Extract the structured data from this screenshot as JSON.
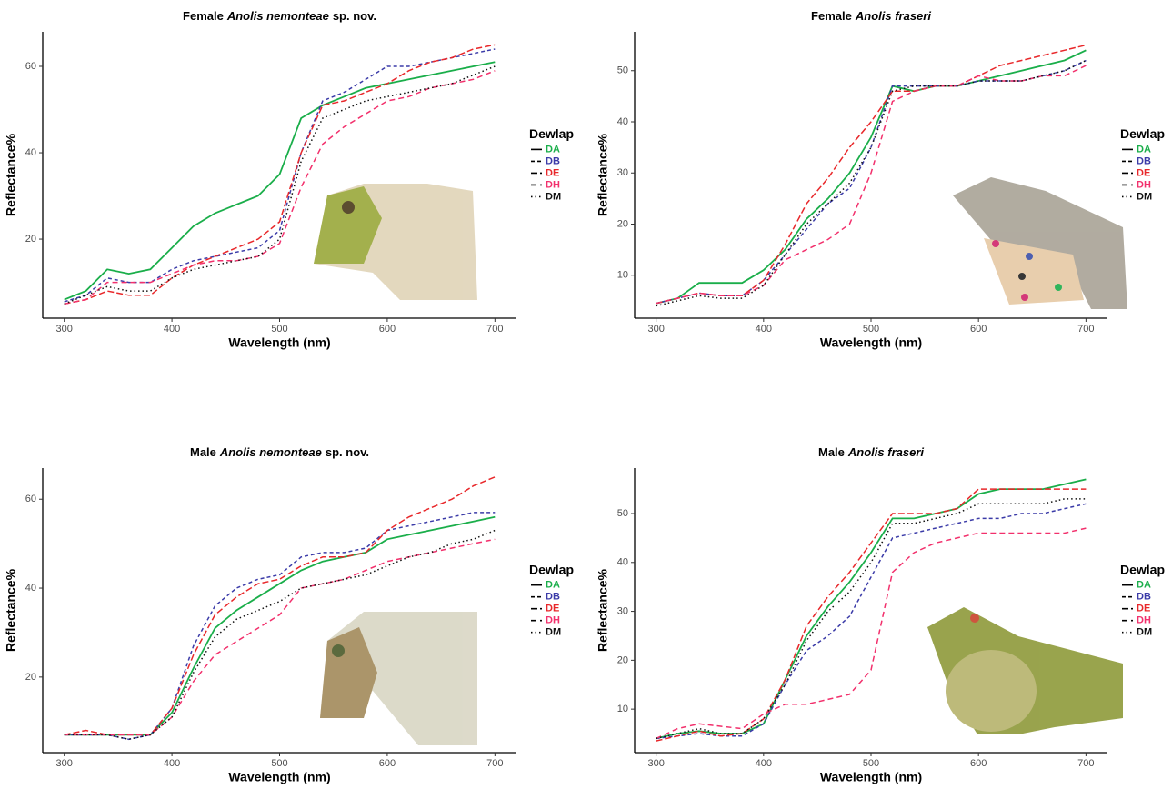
{
  "chart_data": [
    {
      "type": "line",
      "title": {
        "prefix": "Female",
        "species": "Anolis nemonteae",
        "suffix": "sp. nov."
      },
      "x_label": "Wavelength (nm)",
      "y_label": "Reflectance%",
      "legend_title": "Dewlap",
      "x": [
        300,
        320,
        340,
        360,
        380,
        400,
        420,
        440,
        460,
        480,
        500,
        520,
        540,
        560,
        580,
        600,
        620,
        640,
        660,
        680,
        700
      ],
      "xlim": [
        280,
        720
      ],
      "xticks": [
        300,
        400,
        500,
        600,
        700
      ],
      "ylim": [
        1.7,
        68
      ],
      "yticks": [
        20,
        40,
        60
      ],
      "series": [
        {
          "name": "DA",
          "color": "#1aae4a",
          "values": [
            6,
            8,
            13,
            12,
            13,
            18,
            23,
            26,
            28,
            30,
            35,
            48,
            51,
            53,
            55,
            56,
            57,
            58,
            59,
            60,
            61
          ]
        },
        {
          "name": "DB",
          "color": "#3b3ba8",
          "values": [
            5.5,
            7,
            11,
            10,
            10,
            13,
            15,
            16,
            17,
            18,
            22,
            40,
            52,
            54,
            57,
            60,
            60,
            61,
            62,
            63,
            64
          ]
        },
        {
          "name": "DE",
          "color": "#e8272a",
          "values": [
            5,
            6,
            8,
            7,
            7,
            11,
            14,
            16,
            18,
            20,
            24,
            40,
            51,
            52,
            54,
            56,
            59,
            61,
            62,
            64,
            65
          ]
        },
        {
          "name": "DH",
          "color": "#f2306c",
          "values": [
            5,
            6,
            10,
            10,
            10,
            12,
            14,
            15,
            15,
            16,
            19,
            32,
            42,
            46,
            49,
            52,
            53,
            55,
            56,
            57,
            59
          ]
        },
        {
          "name": "DM",
          "color": "#111111",
          "values": [
            5,
            7,
            9,
            8,
            8,
            11,
            13,
            14,
            15,
            16,
            20,
            38,
            48,
            50,
            52,
            53,
            54,
            55,
            56,
            58,
            60
          ]
        }
      ]
    },
    {
      "type": "line",
      "title": {
        "prefix": "Female",
        "species": "Anolis fraseri"
      },
      "x_label": "Wavelength (nm)",
      "y_label": "Reflectance%",
      "legend_title": "Dewlap",
      "x": [
        300,
        320,
        340,
        360,
        380,
        400,
        420,
        440,
        460,
        480,
        500,
        520,
        540,
        560,
        580,
        600,
        620,
        640,
        660,
        680,
        700
      ],
      "xlim": [
        280,
        720
      ],
      "xticks": [
        300,
        400,
        500,
        600,
        700
      ],
      "ylim": [
        1.6,
        57.6
      ],
      "yticks": [
        10,
        20,
        30,
        40,
        50
      ],
      "series": [
        {
          "name": "DA",
          "color": "#1aae4a",
          "values": [
            4.5,
            5.5,
            8.5,
            8.5,
            8.5,
            11,
            15,
            21,
            25,
            30,
            37,
            47,
            46,
            47,
            47,
            48,
            49,
            50,
            51,
            52,
            54
          ]
        },
        {
          "name": "DB",
          "color": "#3b3ba8",
          "values": [
            4.5,
            5.5,
            6.5,
            6,
            6,
            9,
            14,
            19,
            24,
            27,
            35,
            47,
            47,
            47,
            47,
            48,
            48,
            48,
            49,
            50,
            52
          ]
        },
        {
          "name": "DE",
          "color": "#e8272a",
          "values": [
            4.5,
            5.5,
            6.5,
            6,
            6,
            9,
            16,
            24,
            29,
            35,
            40,
            46,
            46,
            47,
            47,
            49,
            51,
            52,
            53,
            54,
            55
          ]
        },
        {
          "name": "DH",
          "color": "#f2306c",
          "values": [
            4.5,
            5.5,
            6.5,
            6,
            6,
            8,
            13,
            15,
            17,
            20,
            30,
            44,
            46,
            47,
            47,
            49,
            48,
            48,
            49,
            49,
            51
          ]
        },
        {
          "name": "DM",
          "color": "#111111",
          "values": [
            4,
            5,
            6,
            5.5,
            5.5,
            8,
            14,
            20,
            24,
            28,
            35,
            46,
            47,
            47,
            47,
            48,
            48,
            48,
            49,
            50,
            52
          ]
        }
      ]
    },
    {
      "type": "line",
      "title": {
        "prefix": "Male",
        "species": "Anolis nemonteae",
        "suffix": "sp. nov."
      },
      "x_label": "Wavelength (nm)",
      "y_label": "Reflectance%",
      "legend_title": "Dewlap",
      "x": [
        300,
        320,
        340,
        360,
        380,
        400,
        420,
        440,
        460,
        480,
        500,
        520,
        540,
        560,
        580,
        600,
        620,
        640,
        660,
        680,
        700
      ],
      "xlim": [
        280,
        720
      ],
      "xticks": [
        300,
        400,
        500,
        600,
        700
      ],
      "ylim": [
        3,
        67
      ],
      "yticks": [
        20,
        40,
        60
      ],
      "series": [
        {
          "name": "DA",
          "color": "#1aae4a",
          "values": [
            7,
            7,
            7,
            7,
            7,
            12,
            22,
            31,
            35,
            38,
            41,
            44,
            46,
            47,
            48,
            51,
            52,
            53,
            54,
            55,
            56
          ]
        },
        {
          "name": "DB",
          "color": "#3b3ba8",
          "values": [
            7,
            7,
            7,
            6,
            7,
            13,
            27,
            36,
            40,
            42,
            43,
            47,
            48,
            48,
            49,
            53,
            54,
            55,
            56,
            57,
            57
          ]
        },
        {
          "name": "DE",
          "color": "#e8272a",
          "values": [
            7,
            8,
            7,
            7,
            7,
            13,
            25,
            34,
            38,
            41,
            42,
            45,
            47,
            47,
            48,
            53,
            56,
            58,
            60,
            63,
            65
          ]
        },
        {
          "name": "DH",
          "color": "#f2306c",
          "values": [
            7,
            7,
            7,
            7,
            7,
            11,
            19,
            25,
            28,
            31,
            34,
            40,
            41,
            42,
            44,
            46,
            47,
            48,
            49,
            50,
            51
          ]
        },
        {
          "name": "DM",
          "color": "#111111",
          "values": [
            7,
            7,
            7,
            6,
            7,
            11,
            21,
            29,
            33,
            35,
            37,
            40,
            41,
            42,
            43,
            45,
            47,
            48,
            50,
            51,
            53
          ]
        }
      ]
    },
    {
      "type": "line",
      "title": {
        "prefix": "Male",
        "species": "Anolis fraseri"
      },
      "x_label": "Wavelength (nm)",
      "y_label": "Reflectance%",
      "legend_title": "Dewlap",
      "x": [
        300,
        320,
        340,
        360,
        380,
        400,
        420,
        440,
        460,
        480,
        500,
        520,
        540,
        560,
        580,
        600,
        620,
        640,
        660,
        680,
        700
      ],
      "xlim": [
        280,
        720
      ],
      "xticks": [
        300,
        400,
        500,
        600,
        700
      ],
      "ylim": [
        1.1,
        59.3
      ],
      "yticks": [
        10,
        20,
        30,
        40,
        50
      ],
      "series": [
        {
          "name": "DA",
          "color": "#1aae4a",
          "values": [
            4,
            5,
            5.5,
            5,
            5,
            7,
            16,
            25,
            31,
            36,
            42,
            49,
            49,
            50,
            51,
            54,
            55,
            55,
            55,
            56,
            57
          ]
        },
        {
          "name": "DB",
          "color": "#3b3ba8",
          "values": [
            4,
            4.5,
            5,
            4.5,
            4.5,
            7,
            15,
            22,
            25,
            29,
            37,
            45,
            46,
            47,
            48,
            49,
            49,
            50,
            50,
            51,
            52
          ]
        },
        {
          "name": "DE",
          "color": "#e8272a",
          "values": [
            3.5,
            4.5,
            5.5,
            4.5,
            5,
            8,
            16,
            27,
            33,
            38,
            44,
            50,
            50,
            50,
            51,
            55,
            55,
            55,
            55,
            55,
            55
          ]
        },
        {
          "name": "DH",
          "color": "#f2306c",
          "values": [
            4,
            6,
            7,
            6.5,
            6,
            9,
            11,
            11,
            12,
            13,
            18,
            38,
            42,
            44,
            45,
            46,
            46,
            46,
            46,
            46,
            47
          ]
        },
        {
          "name": "DM",
          "color": "#111111",
          "values": [
            4,
            5,
            6,
            5,
            5,
            8,
            15,
            24,
            30,
            34,
            40,
            48,
            48,
            49,
            50,
            52,
            52,
            52,
            52,
            53,
            53
          ]
        }
      ]
    }
  ]
}
